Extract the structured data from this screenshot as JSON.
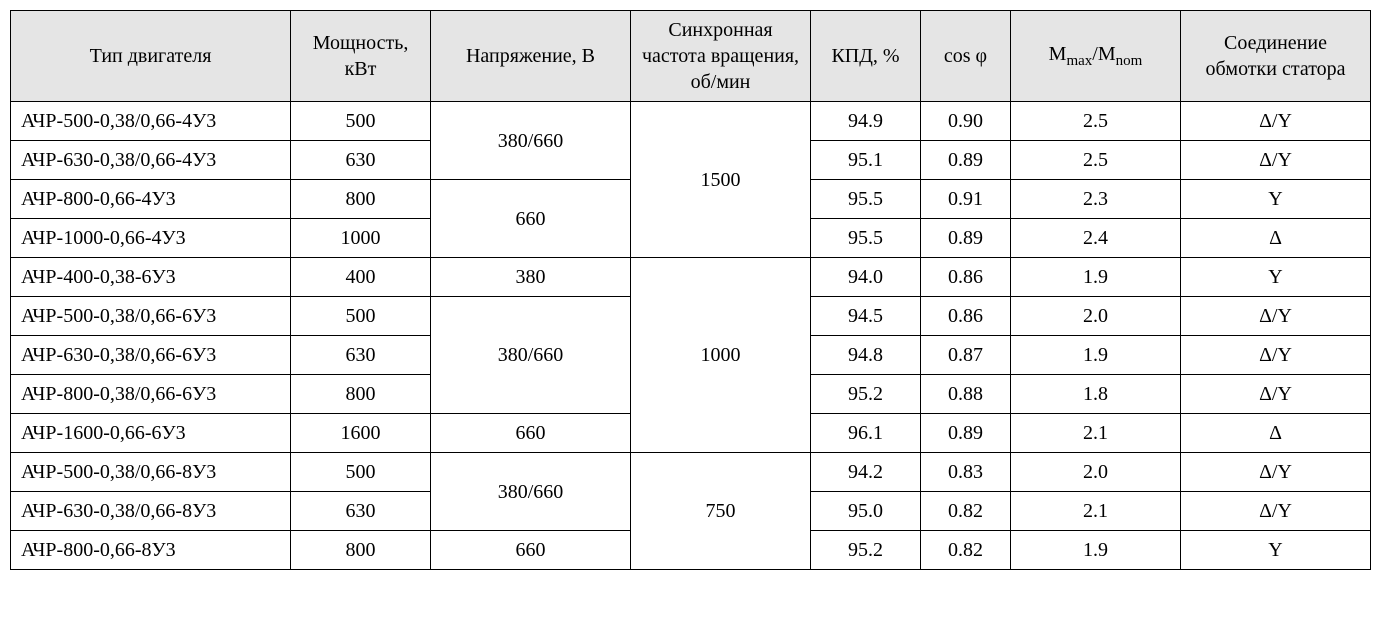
{
  "table": {
    "background_header": "#e5e5e5",
    "background_body": "#ffffff",
    "border_color": "#000000",
    "font_family": "Times New Roman",
    "font_size_pt": 15,
    "headers": {
      "type": "Тип двигателя",
      "power": "Мощность, кВт",
      "voltage": "Напряжение, В",
      "sync_speed": "Синхронная частота вращения, об/мин",
      "efficiency": "КПД, %",
      "cos_phi": "cos φ",
      "mmax_mnom_prefix": "M",
      "mmax_mnom_sub1": "max",
      "mmax_mnom_slash": "/M",
      "mmax_mnom_sub2": "nom",
      "winding": "Соединение обмотки статора"
    },
    "voltage_groups": {
      "g1": "380/660",
      "g2": "660",
      "g3": "380",
      "g4": "380/660",
      "g5": "660",
      "g6": "380/660",
      "g7": "660"
    },
    "speed_groups": {
      "s1": "1500",
      "s2": "1000",
      "s3": "750"
    },
    "rows": [
      {
        "type": "АЧР-500-0,38/0,66-4У3",
        "power": "500",
        "eff": "94.9",
        "cos": "0.90",
        "m": "2.5",
        "conn": "Δ/Y"
      },
      {
        "type": "АЧР-630-0,38/0,66-4У3",
        "power": "630",
        "eff": "95.1",
        "cos": "0.89",
        "m": "2.5",
        "conn": "Δ/Y"
      },
      {
        "type": "АЧР-800-0,66-4У3",
        "power": "800",
        "eff": "95.5",
        "cos": "0.91",
        "m": "2.3",
        "conn": "Y"
      },
      {
        "type": "АЧР-1000-0,66-4У3",
        "power": "1000",
        "eff": "95.5",
        "cos": "0.89",
        "m": "2.4",
        "conn": "Δ"
      },
      {
        "type": "АЧР-400-0,38-6У3",
        "power": "400",
        "eff": "94.0",
        "cos": "0.86",
        "m": "1.9",
        "conn": "Y"
      },
      {
        "type": "АЧР-500-0,38/0,66-6У3",
        "power": "500",
        "eff": "94.5",
        "cos": "0.86",
        "m": "2.0",
        "conn": "Δ/Y"
      },
      {
        "type": "АЧР-630-0,38/0,66-6У3",
        "power": "630",
        "eff": "94.8",
        "cos": "0.87",
        "m": "1.9",
        "conn": "Δ/Y"
      },
      {
        "type": "АЧР-800-0,38/0,66-6У3",
        "power": "800",
        "eff": "95.2",
        "cos": "0.88",
        "m": "1.8",
        "conn": "Δ/Y"
      },
      {
        "type": "АЧР-1600-0,66-6У3",
        "power": "1600",
        "eff": "96.1",
        "cos": "0.89",
        "m": "2.1",
        "conn": "Δ"
      },
      {
        "type": "АЧР-500-0,38/0,66-8У3",
        "power": "500",
        "eff": "94.2",
        "cos": "0.83",
        "m": "2.0",
        "conn": "Δ/Y"
      },
      {
        "type": "АЧР-630-0,38/0,66-8У3",
        "power": "630",
        "eff": "95.0",
        "cos": "0.82",
        "m": "2.1",
        "conn": "Δ/Y"
      },
      {
        "type": "АЧР-800-0,66-8У3",
        "power": "800",
        "eff": "95.2",
        "cos": "0.82",
        "m": "1.9",
        "conn": "Y"
      }
    ]
  }
}
